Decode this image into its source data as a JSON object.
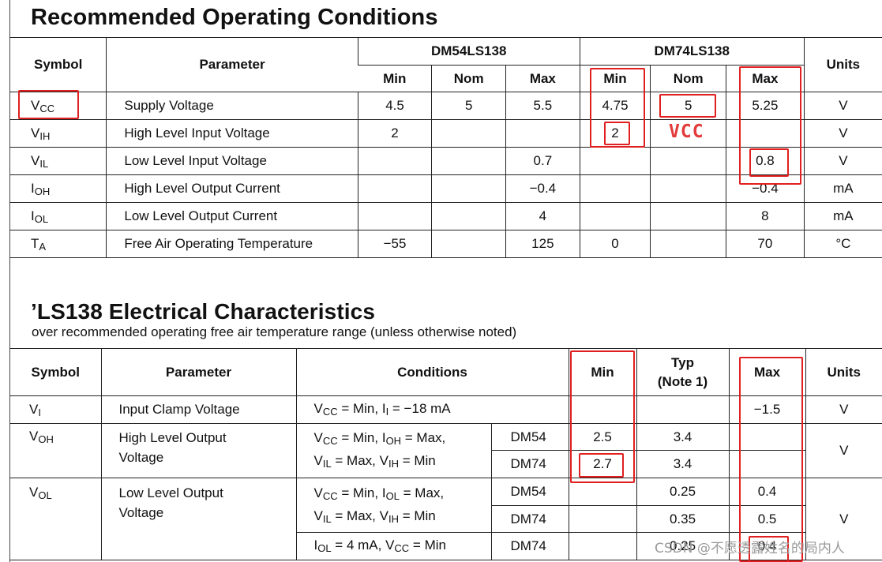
{
  "section1": {
    "title": "Recommended Operating Conditions",
    "head": {
      "symbol": "Symbol",
      "parameter": "Parameter",
      "group1": "DM54LS138",
      "group2": "DM74LS138",
      "units": "Units",
      "min": "Min",
      "nom": "Nom",
      "max": "Max"
    },
    "rows": [
      {
        "sym": "V",
        "sub": "CC",
        "param": "Supply Voltage",
        "v": [
          "4.5",
          "5",
          "5.5",
          "4.75",
          "5",
          "5.25"
        ],
        "unit": "V"
      },
      {
        "sym": "V",
        "sub": "IH",
        "param": "High Level Input Voltage",
        "v": [
          "2",
          "",
          "",
          "2",
          "",
          ""
        ],
        "unit": "V"
      },
      {
        "sym": "V",
        "sub": "IL",
        "param": "Low Level Input Voltage",
        "v": [
          "",
          "",
          "0.7",
          "",
          "",
          "0.8"
        ],
        "unit": "V"
      },
      {
        "sym": "I",
        "sub": "OH",
        "param": "High Level Output Current",
        "v": [
          "",
          "",
          "−0.4",
          "",
          "",
          "−0.4"
        ],
        "unit": "mA"
      },
      {
        "sym": "I",
        "sub": "OL",
        "param": "Low Level Output Current",
        "v": [
          "",
          "",
          "4",
          "",
          "",
          "8"
        ],
        "unit": "mA"
      },
      {
        "sym": "T",
        "sub": "A",
        "param": "Free Air Operating Temperature",
        "v": [
          "−55",
          "",
          "125",
          "0",
          "",
          "70"
        ],
        "unit": "°C"
      }
    ]
  },
  "annotation": {
    "vcc": "VCC"
  },
  "section2": {
    "title": "’LS138 Electrical Characteristics",
    "subtitle": "over recommended operating free air temperature range (unless otherwise noted)",
    "head": {
      "symbol": "Symbol",
      "parameter": "Parameter",
      "conditions": "Conditions",
      "min": "Min",
      "typ1": "Typ",
      "typ2": "(Note 1)",
      "max": "Max",
      "units": "Units"
    },
    "vi": {
      "sym": "V",
      "sub": "I",
      "param": "Input Clamp Voltage",
      "c1": "V",
      "c1sub": "CC",
      "c1a": " = Min, I",
      "c1sub2": "I",
      "c1b": " = −18 mA",
      "max": "−1.5",
      "unit": "V"
    },
    "voh": {
      "sym": "V",
      "sub": "OH",
      "param1": "High Level Output",
      "param2": "Voltage",
      "l1a": "V",
      "l1s": "CC",
      "l1b": " = Min, I",
      "l1s2": "OH",
      "l1c": " = Max,",
      "l2a": "V",
      "l2s": "IL",
      "l2b": " = Max, V",
      "l2s2": "IH",
      "l2c": " = Min",
      "dev1": "DM54",
      "min1": "2.5",
      "typ1": "3.4",
      "dev2": "DM74",
      "min2": "2.7",
      "typ2": "3.4",
      "unit": "V"
    },
    "vol": {
      "sym": "V",
      "sub": "OL",
      "param1": "Low Level Output",
      "param2": "Voltage",
      "l1a": "V",
      "l1s": "CC",
      "l1b": " = Min, I",
      "l1s2": "OL",
      "l1c": " = Max,",
      "l2a": "V",
      "l2s": "IL",
      "l2b": " = Max, V",
      "l2s2": "IH",
      "l2c": " = Min",
      "dev1": "DM54",
      "typ1": "0.25",
      "max1": "0.4",
      "dev2": "DM74",
      "typ2": "0.35",
      "max2": "0.5",
      "l3a": "I",
      "l3s": "OL",
      "l3b": " = 4 mA, V",
      "l3s2": "CC",
      "l3c": " = Min",
      "dev3": "DM74",
      "typ3": "0.25",
      "max3": "0.4",
      "unit": "V"
    }
  },
  "watermark": "CSDN @不愿透露姓名的局内人"
}
